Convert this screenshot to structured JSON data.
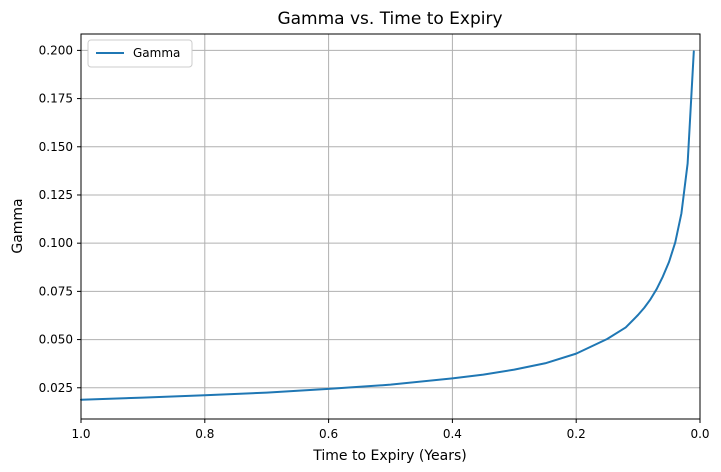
{
  "chart_data": {
    "type": "line",
    "title": "Gamma vs. Time to Expiry",
    "xlabel": "Time to Expiry (Years)",
    "ylabel": "Gamma",
    "xlim": [
      1.0,
      0.0
    ],
    "x_inverted": true,
    "ylim": [
      0.0088,
      0.2085
    ],
    "grid": true,
    "legend_position": "top-left",
    "x_ticks": [
      "1.0",
      "0.8",
      "0.6",
      "0.4",
      "0.2",
      "0.0"
    ],
    "y_ticks": [
      "0.025",
      "0.050",
      "0.075",
      "0.100",
      "0.125",
      "0.150",
      "0.175",
      "0.200"
    ],
    "colors": {
      "series": "#1f77b4",
      "grid": "#b0b0b0"
    },
    "series": [
      {
        "name": "Gamma",
        "x": [
          1.0,
          0.9,
          0.8,
          0.7,
          0.6,
          0.5,
          0.4,
          0.35,
          0.3,
          0.25,
          0.2,
          0.15,
          0.12,
          0.1,
          0.09,
          0.08,
          0.07,
          0.06,
          0.05,
          0.04,
          0.03,
          0.02,
          0.01
        ],
        "y": [
          0.0188,
          0.0199,
          0.0211,
          0.0225,
          0.0244,
          0.0266,
          0.0299,
          0.0318,
          0.0344,
          0.0377,
          0.0427,
          0.0503,
          0.0563,
          0.0628,
          0.0665,
          0.0709,
          0.0762,
          0.0827,
          0.0903,
          0.1004,
          0.1155,
          0.1413,
          0.1995
        ]
      }
    ]
  }
}
